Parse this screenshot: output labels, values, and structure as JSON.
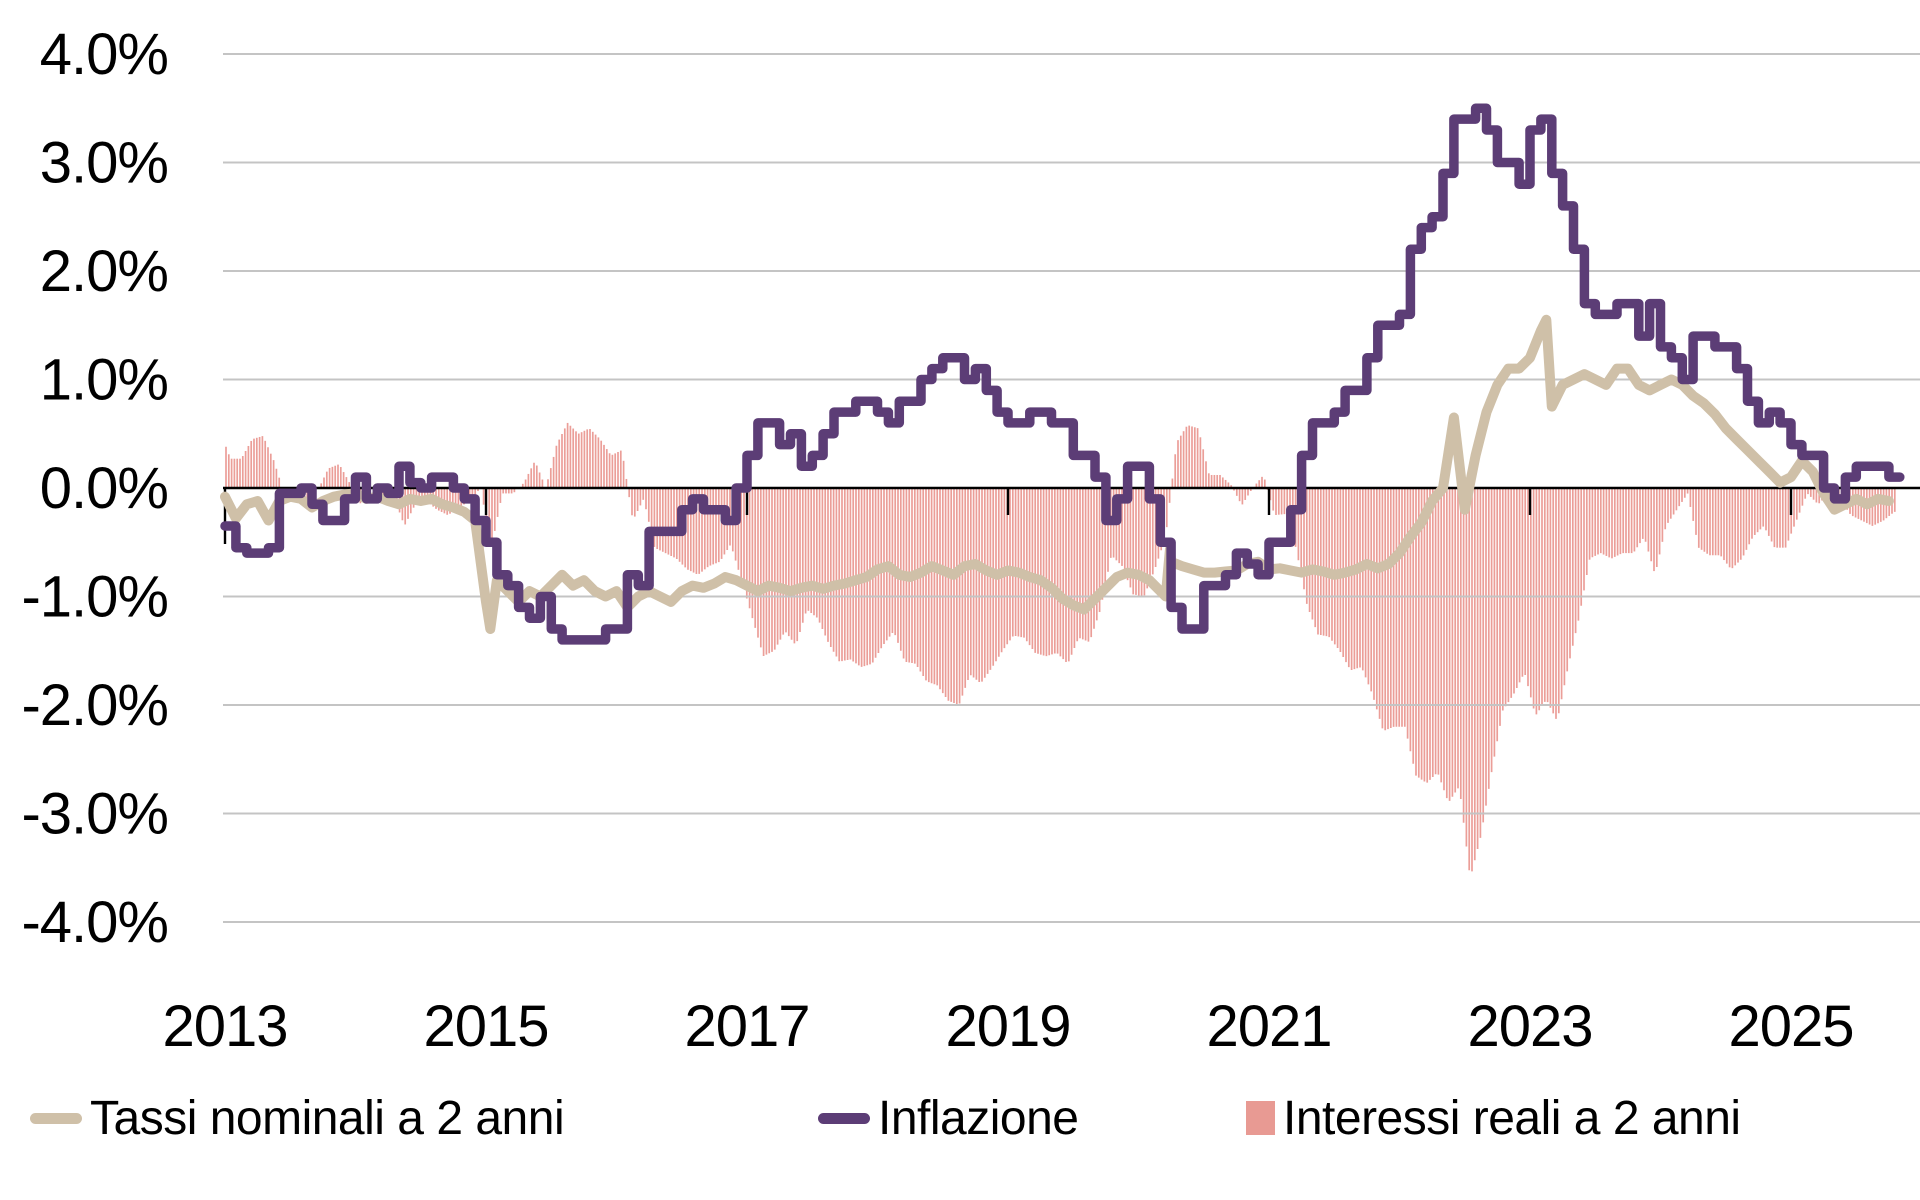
{
  "chart_data": {
    "type": "line",
    "title": "",
    "xlabel": "",
    "ylabel": "",
    "x_start_year": 2013,
    "x_months": 154,
    "ylim": [
      -4.0,
      4.0
    ],
    "grid": true,
    "legend_position": "bottom",
    "y_ticks": [
      {
        "value": 4.0,
        "label": "4.0%"
      },
      {
        "value": 3.0,
        "label": "3.0%"
      },
      {
        "value": 2.0,
        "label": "2.0%"
      },
      {
        "value": 1.0,
        "label": "1.0%"
      },
      {
        "value": 0.0,
        "label": "0.0%"
      },
      {
        "value": -1.0,
        "label": "-1.0%"
      },
      {
        "value": -2.0,
        "label": "-2.0%"
      },
      {
        "value": -3.0,
        "label": "-3.0%"
      },
      {
        "value": -4.0,
        "label": "-4.0%"
      }
    ],
    "x_ticks": [
      {
        "year": 2013,
        "label": "2013"
      },
      {
        "year": 2015,
        "label": "2015"
      },
      {
        "year": 2017,
        "label": "2017"
      },
      {
        "year": 2019,
        "label": "2019"
      },
      {
        "year": 2021,
        "label": "2021"
      },
      {
        "year": 2023,
        "label": "2023"
      },
      {
        "year": 2025,
        "label": "2025"
      }
    ],
    "series": [
      {
        "name": "Tassi nominali a 2 anni",
        "type": "line",
        "color": "#cfc0a8",
        "monthly_from": "2013-01",
        "values": [
          -0.08,
          -0.28,
          -0.15,
          -0.12,
          -0.3,
          -0.12,
          -0.08,
          -0.1,
          -0.18,
          -0.12,
          -0.08,
          -0.06,
          -0.05,
          -0.1,
          -0.08,
          -0.12,
          -0.15,
          -0.1,
          -0.12,
          -0.1,
          -0.15,
          -0.18,
          -0.22,
          -0.3,
          -1.05,
          -0.85,
          -0.95,
          -1.05,
          -0.95,
          -1.0,
          -0.9,
          -0.8,
          -0.9,
          -0.85,
          -0.95,
          -1.0,
          -0.95,
          -1.1,
          -1.0,
          -0.95,
          -1.0,
          -1.05,
          -0.95,
          -0.9,
          -0.92,
          -0.88,
          -0.82,
          -0.85,
          -0.9,
          -0.95,
          -0.9,
          -0.92,
          -0.95,
          -0.92,
          -0.9,
          -0.93,
          -0.9,
          -0.88,
          -0.85,
          -0.82,
          -0.75,
          -0.72,
          -0.8,
          -0.82,
          -0.78,
          -0.72,
          -0.76,
          -0.8,
          -0.72,
          -0.7,
          -0.76,
          -0.8,
          -0.76,
          -0.78,
          -0.82,
          -0.85,
          -0.92,
          -1.02,
          -1.08,
          -1.12,
          -1.02,
          -0.92,
          -0.82,
          -0.78,
          -0.8,
          -0.85,
          -0.95,
          -0.68,
          -0.72,
          -0.75,
          -0.78,
          -0.78,
          -0.77,
          -0.76,
          -0.7,
          -0.68,
          -0.75,
          -0.74,
          -0.76,
          -0.78,
          -0.75,
          -0.77,
          -0.8,
          -0.78,
          -0.75,
          -0.7,
          -0.74,
          -0.7,
          -0.6,
          -0.45,
          -0.32,
          -0.12,
          0.0,
          0.65,
          -0.2,
          0.3,
          0.7,
          0.95,
          1.1,
          1.1,
          1.2,
          1.45,
          0.75,
          0.95,
          1.0,
          1.05,
          1.0,
          0.95,
          1.1,
          1.1,
          0.95,
          0.9,
          0.95,
          1.0,
          0.95,
          0.85,
          0.78,
          0.68,
          0.55,
          0.45,
          0.35,
          0.25,
          0.15,
          0.05,
          0.1,
          0.25,
          0.15,
          -0.05,
          -0.2,
          -0.15,
          -0.1,
          -0.15,
          -0.1,
          -0.12
        ],
        "extra_points": [
          {
            "month": 24.4,
            "value": -1.3
          },
          {
            "month": 86.5,
            "value": -1.0
          },
          {
            "month": 86.9,
            "value": -0.56
          },
          {
            "month": 121.5,
            "value": 1.55
          }
        ]
      },
      {
        "name": "Inflazione",
        "type": "step-line",
        "color": "#5c3d76",
        "monthly_from": "2013-01",
        "values": [
          -0.35,
          -0.55,
          -0.6,
          -0.6,
          -0.55,
          -0.05,
          -0.05,
          0.0,
          -0.15,
          -0.3,
          -0.3,
          -0.1,
          0.1,
          -0.1,
          0.0,
          -0.05,
          0.2,
          0.05,
          0.0,
          0.1,
          0.1,
          0.0,
          -0.1,
          -0.3,
          -0.5,
          -0.8,
          -0.9,
          -1.1,
          -1.2,
          -1.0,
          -1.3,
          -1.4,
          -1.4,
          -1.4,
          -1.4,
          -1.3,
          -1.3,
          -0.8,
          -0.9,
          -0.4,
          -0.4,
          -0.4,
          -0.2,
          -0.1,
          -0.2,
          -0.2,
          -0.3,
          0.0,
          0.3,
          0.6,
          0.6,
          0.4,
          0.5,
          0.2,
          0.3,
          0.5,
          0.7,
          0.7,
          0.8,
          0.8,
          0.7,
          0.6,
          0.8,
          0.8,
          1.0,
          1.1,
          1.2,
          1.2,
          1.0,
          1.1,
          0.9,
          0.7,
          0.6,
          0.6,
          0.7,
          0.7,
          0.6,
          0.6,
          0.3,
          0.3,
          0.1,
          -0.3,
          -0.1,
          0.2,
          0.2,
          -0.1,
          -0.5,
          -1.1,
          -1.3,
          -1.3,
          -0.9,
          -0.9,
          -0.8,
          -0.6,
          -0.7,
          -0.8,
          -0.5,
          -0.5,
          -0.2,
          0.3,
          0.6,
          0.6,
          0.7,
          0.9,
          0.9,
          1.2,
          1.5,
          1.5,
          1.6,
          2.2,
          2.4,
          2.5,
          2.9,
          3.4,
          3.4,
          3.5,
          3.3,
          3.0,
          3.0,
          2.8,
          3.3,
          3.4,
          2.9,
          2.6,
          2.2,
          1.7,
          1.6,
          1.6,
          1.7,
          1.7,
          1.4,
          1.7,
          1.3,
          1.2,
          1.0,
          1.4,
          1.4,
          1.3,
          1.3,
          1.1,
          0.8,
          0.6,
          0.7,
          0.6,
          0.4,
          0.3,
          0.3,
          0.0,
          -0.1,
          0.1,
          0.2,
          0.2,
          0.2,
          0.1
        ]
      },
      {
        "name": "Interessi reali a 2 anni",
        "type": "bars",
        "color": "#eb9e98",
        "derived": "nominal_minus_inflation",
        "note": "real 2y rate = Tassi nominali a 2 anni - Inflazione, drawn as dense thin vertical bars from the zero axis"
      }
    ]
  },
  "colors": {
    "background": "#ffffff",
    "gridline": "#c4c4c4",
    "axis": "#000000",
    "tick_text": "#000000",
    "nominal_line": "#cfc0a8",
    "inflation_line": "#5c3d76",
    "real_bars": "#eb9e98"
  },
  "legend": {
    "items": [
      {
        "label": "Tassi nominali a 2 anni",
        "swatch": "dash",
        "color": "#cfc0a8"
      },
      {
        "label": "Inflazione",
        "swatch": "dash",
        "color": "#5c3d76"
      },
      {
        "label": "Interessi reali a 2 anni",
        "swatch": "square",
        "color": "#e89a93"
      }
    ]
  }
}
